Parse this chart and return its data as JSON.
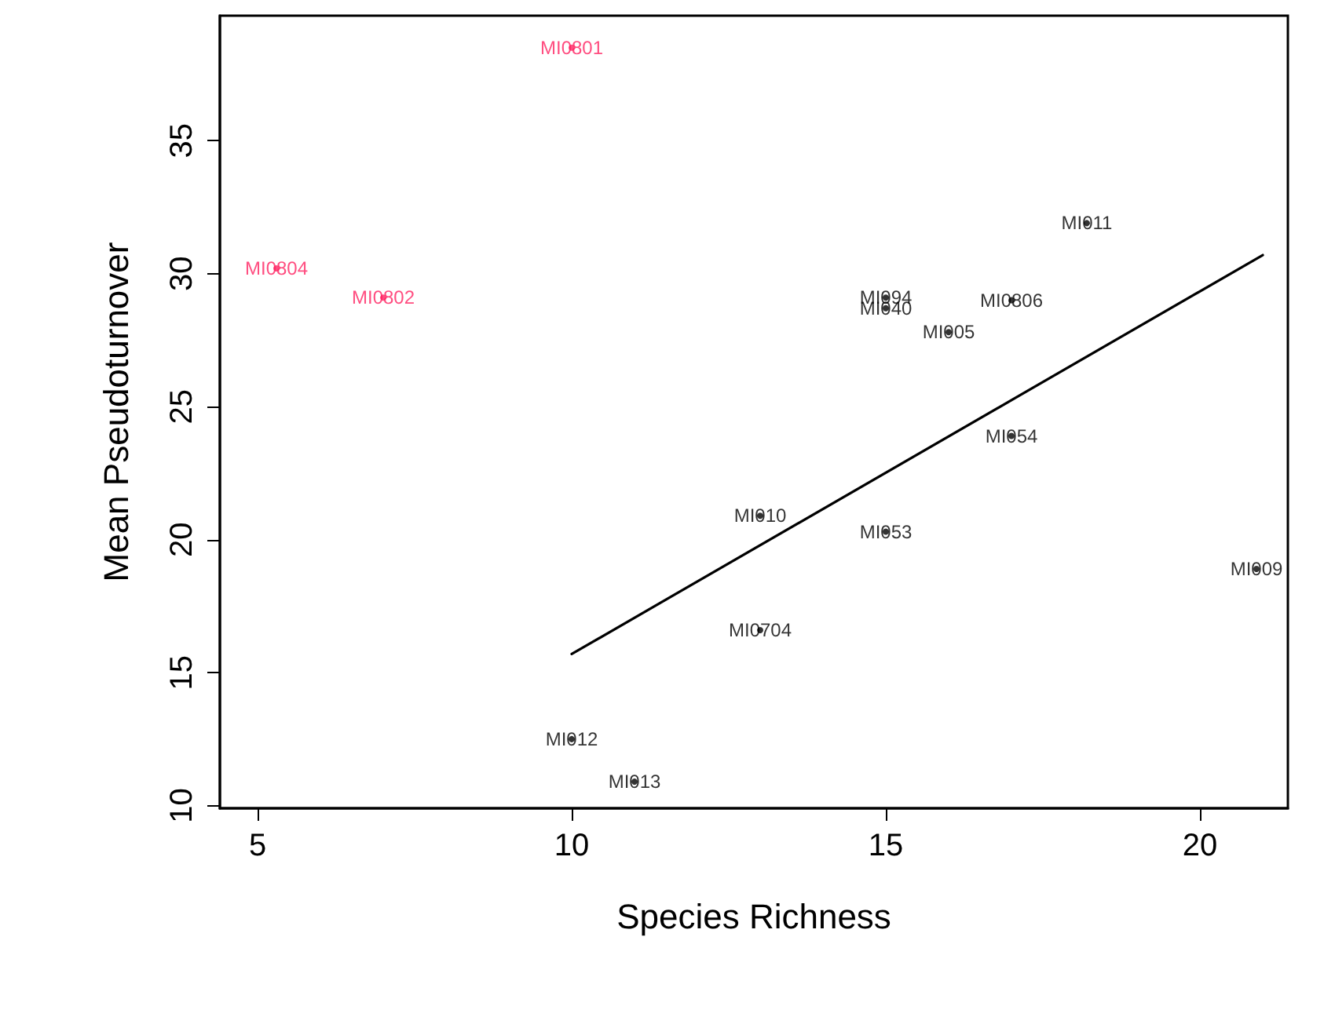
{
  "chart_data": {
    "type": "scatter",
    "xlabel": "Species Richness",
    "ylabel": "Mean Pseudoturnover",
    "xlim": [
      4.4,
      21.4
    ],
    "ylim": [
      9.9,
      39.7
    ],
    "xticks": [
      5,
      10,
      15,
      20
    ],
    "yticks": [
      10,
      15,
      20,
      25,
      30,
      35
    ],
    "grid": false,
    "series": [
      {
        "type": "scatter",
        "x": [
          10.0,
          5.3,
          7.0,
          18.2,
          15.0,
          15.0,
          17.0,
          16.0,
          17.0,
          13.0,
          15.0,
          13.0,
          10.0,
          11.0,
          20.9
        ],
        "values": [
          38.5,
          30.2,
          29.1,
          31.9,
          29.1,
          28.7,
          29.0,
          27.8,
          23.9,
          20.9,
          20.3,
          16.6,
          12.5,
          10.9,
          18.9
        ],
        "value_labels": [
          "MI0801",
          "MI0804",
          "MI0802",
          "MI011",
          "MI094",
          "MI040",
          "MI0806",
          "MI005",
          "MI054",
          "MI010",
          "MI053",
          "MI0704",
          "MI012",
          "MI013",
          "MI009"
        ],
        "colors": [
          "#ff2060",
          "#ff2060",
          "#ff2060",
          "#000000",
          "#000000",
          "#000000",
          "#000000",
          "#000000",
          "#000000",
          "#000000",
          "#000000",
          "#000000",
          "#000000",
          "#000000",
          "#000000"
        ]
      },
      {
        "type": "line",
        "x": [
          10.0,
          21.0
        ],
        "values": [
          15.7,
          30.7
        ],
        "color": "#000000",
        "line_style": "solid"
      }
    ]
  }
}
